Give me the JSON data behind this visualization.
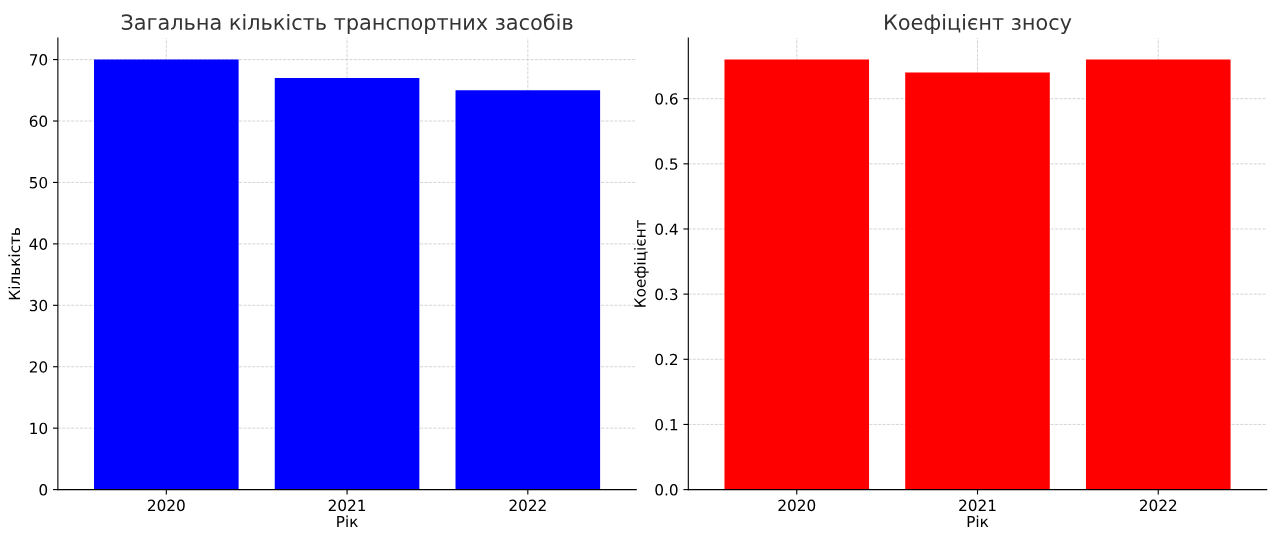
{
  "chart_data": [
    {
      "type": "bar",
      "title": "Загальна кількість транспортних засобів",
      "xlabel": "Рік",
      "ylabel": "Кількість",
      "categories": [
        "2020",
        "2021",
        "2022"
      ],
      "values": [
        70,
        67,
        65
      ],
      "color": "#0000ff",
      "ylim": [
        0,
        73.5
      ],
      "yticks": [
        0,
        10,
        20,
        30,
        40,
        50,
        60,
        70
      ],
      "grid": true
    },
    {
      "type": "bar",
      "title": "Коефіцієнт зносу",
      "xlabel": "Рік",
      "ylabel": "Коефіцієнт",
      "categories": [
        "2020",
        "2021",
        "2022"
      ],
      "values": [
        0.66,
        0.64,
        0.66
      ],
      "color": "#ff0000",
      "ylim": [
        0,
        0.693
      ],
      "yticks": [
        {
          "value": 0,
          "label": "0.0"
        },
        0.1,
        0.2,
        0.3,
        0.4,
        0.5,
        0.6
      ],
      "grid": true
    }
  ]
}
